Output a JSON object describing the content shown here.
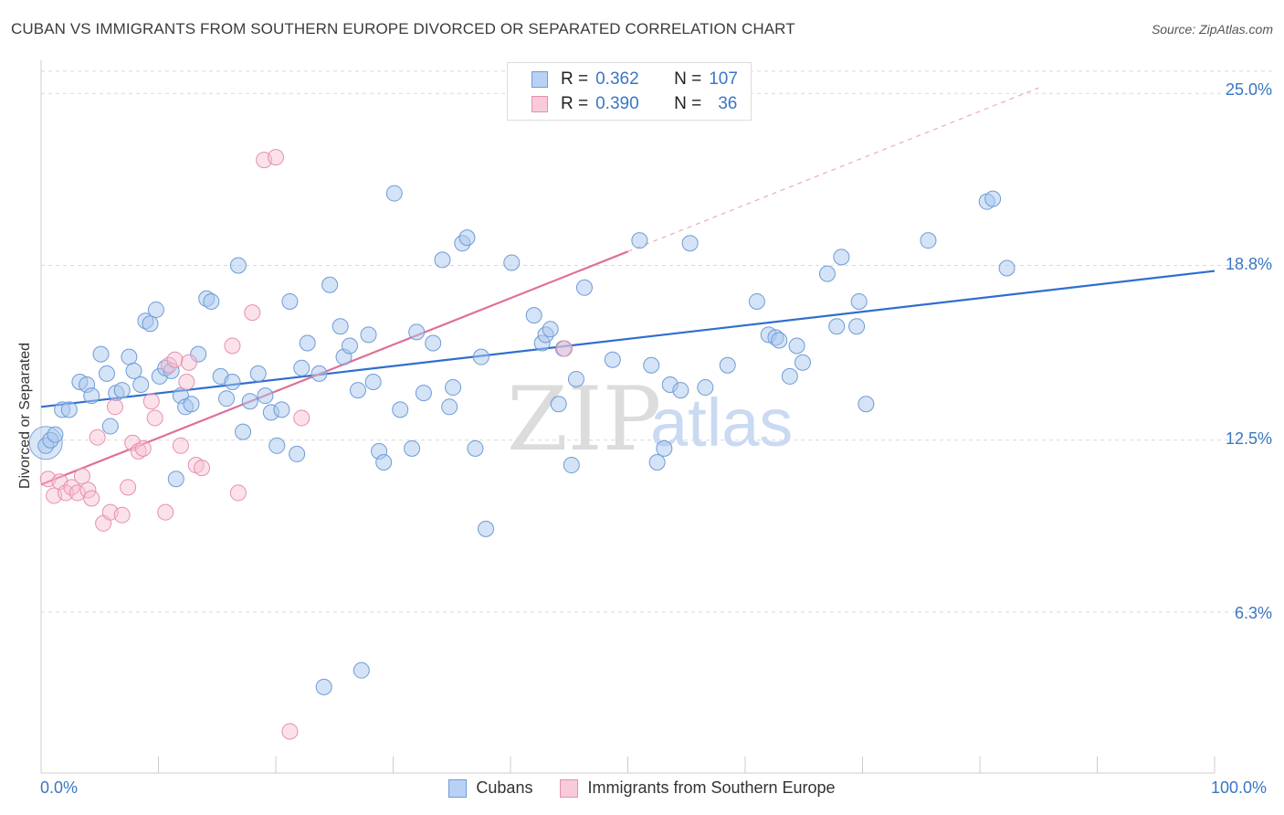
{
  "title": "CUBAN VS IMMIGRANTS FROM SOUTHERN EUROPE DIVORCED OR SEPARATED CORRELATION CHART",
  "source": "Source: ZipAtlas.com",
  "watermark": {
    "zip": "ZIP",
    "atlas": "atlas"
  },
  "colors": {
    "blue": "#3a76c4",
    "blue_fill": "#a9c7ee",
    "blue_line": "#2f6fcc",
    "pink": "#e07096",
    "pink_fill": "#f6bfd0",
    "grid": "#d9d9d9",
    "label_blue": "#3a76c4"
  },
  "legend": {
    "rows": [
      {
        "r_label": "R =",
        "r_value": "0.362",
        "n_label": "N =",
        "n_value": "107"
      },
      {
        "r_label": "R =",
        "r_value": "0.390",
        "n_label": "N =",
        "n_value": "36"
      }
    ]
  },
  "bottom_legend": [
    "Cubans",
    "Immigrants from Southern Europe"
  ],
  "chart_data": {
    "type": "scatter",
    "title": "CUBAN VS IMMIGRANTS FROM SOUTHERN EUROPE DIVORCED OR SEPARATED CORRELATION CHART",
    "xlabel": "",
    "ylabel": "Divorced or Separated",
    "xlim": [
      0,
      100
    ],
    "ylim": [
      0.5,
      25.8
    ],
    "x_tick_labels": [
      "0.0%",
      "100.0%"
    ],
    "y_ticks": [
      6.3,
      12.5,
      18.8,
      25.0
    ],
    "y_tick_labels": [
      "6.3%",
      "12.5%",
      "18.8%",
      "25.0%"
    ],
    "grid": true,
    "series": [
      {
        "name": "Cubans",
        "color": "#3a76c4",
        "r": 0.362,
        "n": 107,
        "trend": {
          "x": [
            0,
            100
          ],
          "y": [
            13.7,
            18.6
          ]
        },
        "points": [
          [
            0.4,
            12.3
          ],
          [
            0.8,
            12.5
          ],
          [
            1.2,
            12.7
          ],
          [
            1.8,
            13.6
          ],
          [
            2.4,
            13.6
          ],
          [
            3.3,
            14.6
          ],
          [
            3.9,
            14.5
          ],
          [
            4.3,
            14.1
          ],
          [
            5.1,
            15.6
          ],
          [
            5.6,
            14.9
          ],
          [
            5.9,
            13.0
          ],
          [
            6.4,
            14.2
          ],
          [
            6.9,
            14.3
          ],
          [
            7.5,
            15.5
          ],
          [
            7.9,
            15.0
          ],
          [
            8.5,
            14.5
          ],
          [
            8.9,
            16.8
          ],
          [
            9.3,
            16.7
          ],
          [
            9.8,
            17.2
          ],
          [
            10.1,
            14.8
          ],
          [
            10.6,
            15.1
          ],
          [
            11.1,
            15.0
          ],
          [
            11.5,
            11.1
          ],
          [
            11.9,
            14.1
          ],
          [
            12.3,
            13.7
          ],
          [
            12.8,
            13.8
          ],
          [
            13.4,
            15.6
          ],
          [
            14.1,
            17.6
          ],
          [
            14.5,
            17.5
          ],
          [
            15.3,
            14.8
          ],
          [
            15.8,
            14.0
          ],
          [
            16.3,
            14.6
          ],
          [
            16.8,
            18.8
          ],
          [
            17.2,
            12.8
          ],
          [
            17.8,
            13.9
          ],
          [
            18.5,
            14.9
          ],
          [
            19.1,
            14.1
          ],
          [
            19.6,
            13.5
          ],
          [
            20.1,
            12.3
          ],
          [
            20.5,
            13.6
          ],
          [
            21.2,
            17.5
          ],
          [
            21.8,
            12.0
          ],
          [
            22.2,
            15.1
          ],
          [
            22.7,
            16.0
          ],
          [
            23.7,
            14.9
          ],
          [
            24.1,
            3.6
          ],
          [
            24.6,
            18.1
          ],
          [
            25.5,
            16.6
          ],
          [
            25.8,
            15.5
          ],
          [
            26.3,
            15.9
          ],
          [
            27.0,
            14.3
          ],
          [
            27.3,
            4.2
          ],
          [
            27.9,
            16.3
          ],
          [
            28.3,
            14.6
          ],
          [
            28.8,
            12.1
          ],
          [
            29.2,
            11.7
          ],
          [
            30.1,
            21.4
          ],
          [
            30.6,
            13.6
          ],
          [
            31.6,
            12.2
          ],
          [
            32.0,
            16.4
          ],
          [
            32.6,
            14.2
          ],
          [
            33.4,
            16.0
          ],
          [
            34.2,
            19.0
          ],
          [
            34.8,
            13.7
          ],
          [
            35.1,
            14.4
          ],
          [
            35.9,
            19.6
          ],
          [
            36.3,
            19.8
          ],
          [
            37.0,
            12.2
          ],
          [
            37.5,
            15.5
          ],
          [
            37.9,
            9.3
          ],
          [
            40.1,
            18.9
          ],
          [
            42.0,
            17.0
          ],
          [
            42.7,
            16.0
          ],
          [
            43.0,
            16.3
          ],
          [
            43.4,
            16.5
          ],
          [
            44.1,
            13.8
          ],
          [
            44.5,
            15.8
          ],
          [
            45.2,
            11.6
          ],
          [
            45.6,
            14.7
          ],
          [
            46.3,
            18.0
          ],
          [
            48.7,
            15.4
          ],
          [
            51.0,
            19.7
          ],
          [
            52.0,
            15.2
          ],
          [
            52.5,
            11.7
          ],
          [
            53.1,
            12.2
          ],
          [
            53.6,
            14.5
          ],
          [
            54.5,
            14.3
          ],
          [
            55.3,
            19.6
          ],
          [
            56.6,
            14.4
          ],
          [
            58.5,
            15.2
          ],
          [
            61.0,
            17.5
          ],
          [
            62.0,
            16.3
          ],
          [
            62.6,
            16.2
          ],
          [
            62.9,
            16.1
          ],
          [
            63.8,
            14.8
          ],
          [
            64.4,
            15.9
          ],
          [
            64.9,
            15.3
          ],
          [
            67.0,
            18.5
          ],
          [
            67.8,
            16.6
          ],
          [
            68.2,
            19.1
          ],
          [
            69.5,
            16.6
          ],
          [
            69.7,
            17.5
          ],
          [
            70.3,
            13.8
          ],
          [
            75.6,
            19.7
          ],
          [
            80.6,
            21.1
          ],
          [
            81.1,
            21.2
          ],
          [
            82.3,
            18.7
          ]
        ]
      },
      {
        "name": "Immigrants from Southern Europe",
        "color": "#e07096",
        "r": 0.39,
        "n": 36,
        "trend": {
          "x": [
            0,
            50
          ],
          "y": [
            10.9,
            19.3
          ]
        },
        "trend_ext": {
          "x": [
            50,
            85
          ],
          "y": [
            19.3,
            25.2
          ]
        },
        "points": [
          [
            0.6,
            11.1
          ],
          [
            1.1,
            10.5
          ],
          [
            1.6,
            11.0
          ],
          [
            2.1,
            10.6
          ],
          [
            2.6,
            10.8
          ],
          [
            3.1,
            10.6
          ],
          [
            3.5,
            11.2
          ],
          [
            4.0,
            10.7
          ],
          [
            4.3,
            10.4
          ],
          [
            4.8,
            12.6
          ],
          [
            5.3,
            9.5
          ],
          [
            5.9,
            9.9
          ],
          [
            6.3,
            13.7
          ],
          [
            6.9,
            9.8
          ],
          [
            7.4,
            10.8
          ],
          [
            7.8,
            12.4
          ],
          [
            8.3,
            12.1
          ],
          [
            8.7,
            12.2
          ],
          [
            9.4,
            13.9
          ],
          [
            9.7,
            13.3
          ],
          [
            10.6,
            9.9
          ],
          [
            10.9,
            15.2
          ],
          [
            11.4,
            15.4
          ],
          [
            11.9,
            12.3
          ],
          [
            12.4,
            14.6
          ],
          [
            12.6,
            15.3
          ],
          [
            13.2,
            11.6
          ],
          [
            13.7,
            11.5
          ],
          [
            16.3,
            15.9
          ],
          [
            16.8,
            10.6
          ],
          [
            18.0,
            17.1
          ],
          [
            19.0,
            22.6
          ],
          [
            20.0,
            22.7
          ],
          [
            21.2,
            2.0
          ],
          [
            22.2,
            13.3
          ],
          [
            44.6,
            15.8
          ]
        ]
      }
    ]
  }
}
